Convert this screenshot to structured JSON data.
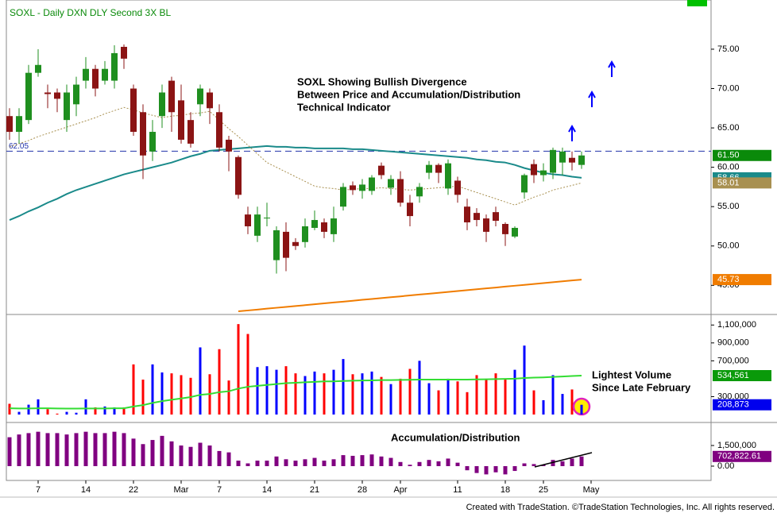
{
  "chart_data": [
    {
      "type": "candlestick",
      "title": "SOXL - Daily  DXN DLY Second 3X BL",
      "annotations": [
        "SOXL  Showing Bullish Divergence",
        "Between Price and Accumulation/Distribution",
        "Technical Indicator"
      ],
      "open": [
        66.5,
        64.5,
        66,
        72,
        69.5,
        69.5,
        66,
        68,
        71,
        72.5,
        71,
        71,
        75.3,
        70,
        67,
        62,
        66.5,
        71,
        68.5,
        66,
        68,
        69.5,
        67,
        63.5,
        61.3,
        54,
        51.3,
        53.5,
        48.2,
        51.8,
        50.5,
        50.5,
        52.3,
        53,
        51.5,
        55,
        57.7,
        57,
        57,
        60.2,
        57.4,
        58.5,
        55.5,
        56.3,
        59.3,
        60.3,
        57.3,
        58.3,
        55,
        54.2,
        53.5,
        54.3,
        52.8,
        51.2,
        56.8,
        60.4,
        59,
        59.3,
        60.6,
        61.2,
        60.3,
        null
      ],
      "high": [
        67.5,
        67.5,
        73,
        75,
        70.5,
        70,
        70.5,
        71.5,
        74,
        73,
        73.5,
        75.5,
        75.6,
        70.5,
        68,
        66,
        70.5,
        71.5,
        70.5,
        67,
        70.5,
        70,
        68,
        64,
        61.5,
        55,
        55,
        55.5,
        52.5,
        53,
        51,
        53.5,
        54.5,
        53.5,
        55,
        58,
        58.2,
        58.5,
        59,
        60.6,
        59,
        59.5,
        56.5,
        58,
        60.8,
        60.5,
        61,
        58.8,
        56,
        54.8,
        54,
        55,
        53,
        52.5,
        59.2,
        61,
        60.5,
        62.5,
        62.5,
        62,
        62,
        null
      ],
      "low": [
        63.5,
        63,
        65.5,
        71.5,
        67.5,
        67,
        64.5,
        66.5,
        70,
        69,
        70.5,
        70,
        72.5,
        64,
        58.5,
        60.8,
        65,
        64.5,
        63,
        62.5,
        66.5,
        65.5,
        62,
        59.5,
        56,
        51.5,
        50.5,
        52.5,
        46.5,
        46.8,
        49.5,
        49.8,
        52,
        51,
        50.5,
        54.5,
        56.5,
        56,
        56.5,
        58.5,
        56.5,
        55,
        52.5,
        55.5,
        58.5,
        58,
        56.5,
        55.5,
        52,
        52.5,
        50.5,
        52.5,
        50,
        51,
        56,
        58,
        58.2,
        58.5,
        59,
        59.6,
        59.8,
        null
      ],
      "close": [
        64.5,
        66.5,
        72,
        73,
        69.3,
        68.7,
        69.5,
        70.5,
        72.5,
        70,
        72.5,
        74.5,
        73.8,
        64.5,
        61.5,
        64.5,
        69.5,
        67,
        63.5,
        63,
        70,
        67.5,
        62.5,
        62,
        56.5,
        52.5,
        54,
        53.6,
        52,
        48.5,
        50,
        52.5,
        53.3,
        51.8,
        53.5,
        57.5,
        57.1,
        57.8,
        58.7,
        59,
        58.5,
        55.5,
        53.8,
        57.5,
        60.3,
        59.3,
        60.5,
        56.5,
        53,
        53.3,
        51.8,
        53.2,
        51.5,
        52.3,
        59,
        59,
        59.6,
        62.2,
        62,
        60.6,
        61.5,
        null
      ],
      "up_color": "#1f8f1f",
      "down_color": "#8b1414",
      "last_label": "61.50",
      "last_color": "#0a8a0a",
      "series": [
        {
          "color": "#1a8a8a",
          "style": "solid",
          "last_label": "58.66",
          "values": [
            53.3,
            53.8,
            54.4,
            54.9,
            55.5,
            56.0,
            56.6,
            57.1,
            57.5,
            57.9,
            58.3,
            58.7,
            59.1,
            59.4,
            59.7,
            60.0,
            60.3,
            60.6,
            61.0,
            61.4,
            61.7,
            62.1,
            62.2,
            62.3,
            62.4,
            62.5,
            62.6,
            62.7,
            62.6,
            62.6,
            62.5,
            62.5,
            62.4,
            62.4,
            62.4,
            62.4,
            62.3,
            62.3,
            62.2,
            62.1,
            62.0,
            61.9,
            61.8,
            61.7,
            61.6,
            61.5,
            61.4,
            61.3,
            61.2,
            61.0,
            60.9,
            60.7,
            60.6,
            60.3,
            59.9,
            59.6,
            59.3,
            59.1,
            59.0,
            58.8,
            58.66,
            null
          ]
        },
        {
          "color": "#a89050",
          "style": "dotted",
          "last_label": "58.01",
          "values": [
            62.6,
            63.0,
            63.4,
            63.9,
            64.3,
            64.7,
            65.1,
            65.5,
            65.9,
            66.3,
            66.8,
            67.2,
            67.6,
            67.3,
            66.9,
            66.6,
            66.3,
            66.5,
            66.6,
            66.8,
            66.9,
            67.1,
            66.0,
            64.9,
            63.9,
            62.8,
            61.7,
            60.6,
            60.0,
            59.4,
            58.8,
            58.2,
            57.6,
            57.4,
            57.3,
            57.1,
            57.2,
            57.3,
            57.3,
            57.4,
            57.3,
            57.2,
            57.1,
            57.2,
            57.3,
            57.4,
            57.5,
            57.6,
            57.2,
            56.8,
            56.4,
            56.0,
            55.6,
            55.2,
            55.7,
            56.2,
            56.6,
            57.1,
            57.4,
            57.7,
            58.01,
            null
          ]
        },
        {
          "color": "#f07c00",
          "style": "solid",
          "last_label": "45.73",
          "values": [
            null,
            null,
            null,
            null,
            null,
            null,
            null,
            null,
            null,
            null,
            null,
            null,
            null,
            null,
            null,
            null,
            null,
            null,
            null,
            null,
            null,
            null,
            null,
            null,
            41.7,
            41.81,
            41.92,
            42.04,
            42.15,
            42.26,
            42.37,
            42.48,
            42.6,
            42.71,
            42.82,
            42.93,
            43.04,
            43.16,
            43.27,
            43.38,
            43.49,
            43.6,
            43.72,
            43.83,
            43.94,
            44.05,
            44.16,
            44.28,
            44.39,
            44.5,
            44.61,
            44.72,
            44.84,
            44.95,
            45.06,
            45.17,
            45.28,
            45.4,
            45.51,
            45.62,
            45.73,
            null
          ]
        }
      ],
      "reference_line": {
        "value": 62.05,
        "color": "#2233aa"
      },
      "ylim": [
        41.4,
        81.25
      ],
      "yticks": [
        {
          "value": 45,
          "label": "45.00"
        },
        {
          "value": 50,
          "label": "50.00"
        },
        {
          "value": 55,
          "label": "55.00"
        },
        {
          "value": 60,
          "label": "60.00"
        },
        {
          "value": 65,
          "label": "65.00"
        },
        {
          "value": 70,
          "label": "70.00"
        },
        {
          "value": 75,
          "label": "75.00"
        }
      ]
    },
    {
      "type": "bar",
      "up_color": "#0000ff",
      "down_color": "#ff0000",
      "annotations": [
        "Lightest Volume",
        "Since Late February"
      ],
      "values": [
        220000,
        130000,
        210000,
        270000,
        160000,
        110000,
        130000,
        120000,
        270000,
        180000,
        190000,
        180000,
        180000,
        660000,
        490000,
        660000,
        570000,
        560000,
        540000,
        510000,
        850000,
        550000,
        830000,
        480000,
        1110000,
        1000000,
        630000,
        640000,
        600000,
        640000,
        560000,
        530000,
        580000,
        560000,
        600000,
        720000,
        550000,
        560000,
        580000,
        520000,
        440000,
        500000,
        610000,
        700000,
        450000,
        370000,
        500000,
        470000,
        350000,
        540000,
        500000,
        560000,
        500000,
        600000,
        870000,
        370000,
        260000,
        540000,
        330000,
        380000,
        208873,
        null
      ],
      "last_label": "208,873",
      "last_color": "#0000ee",
      "series": [
        {
          "color": "#33dd33",
          "last_label": "534,561",
          "values": [
            170000,
            168000,
            168000,
            170000,
            170000,
            168000,
            166000,
            166000,
            168000,
            168000,
            168000,
            170000,
            170000,
            190000,
            205000,
            230000,
            250000,
            265000,
            280000,
            295000,
            320000,
            330000,
            350000,
            360000,
            390000,
            410000,
            420000,
            430000,
            440000,
            450000,
            455000,
            460000,
            465000,
            470000,
            470000,
            475000,
            478000,
            480000,
            482000,
            485000,
            485000,
            487000,
            488000,
            490000,
            490000,
            490000,
            490000,
            490000,
            490000,
            492000,
            494000,
            496000,
            498000,
            500000,
            508000,
            512000,
            515000,
            520000,
            525000,
            530000,
            534561,
            null
          ]
        }
      ],
      "ylim": [
        100000,
        1200000
      ],
      "yticks": [
        {
          "value": 300000,
          "label": "300,000"
        },
        {
          "value": 700000,
          "label": "700,000"
        },
        {
          "value": 900000,
          "label": "900,000"
        },
        {
          "value": 1100000,
          "label": "1,100,000"
        }
      ]
    },
    {
      "type": "bar",
      "color": "#800080",
      "annotations": [
        "Accumulation/Distribution"
      ],
      "categories": [
        null,
        null,
        null,
        "7",
        null,
        null,
        null,
        null,
        "14",
        null,
        null,
        null,
        null,
        "22",
        null,
        null,
        null,
        null,
        "Mar",
        null,
        null,
        null,
        "7",
        null,
        null,
        null,
        null,
        "14",
        null,
        null,
        null,
        null,
        "21",
        null,
        null,
        null,
        null,
        "28",
        null,
        null,
        null,
        "Apr",
        null,
        null,
        null,
        null,
        null,
        "11",
        null,
        null,
        null,
        null,
        "18",
        null,
        null,
        null,
        "25",
        null,
        null,
        null,
        null,
        "May"
      ],
      "values": [
        2100000,
        2300000,
        2400000,
        2500000,
        2400000,
        2400000,
        2300000,
        2400000,
        2500000,
        2400000,
        2400000,
        2500000,
        2400000,
        2000000,
        1600000,
        1900000,
        2200000,
        1800000,
        1500000,
        1400000,
        1700000,
        1500000,
        1100000,
        1000000,
        400000,
        200000,
        400000,
        400000,
        700000,
        500000,
        400000,
        500000,
        600000,
        400000,
        500000,
        800000,
        750000,
        800000,
        850000,
        700000,
        600000,
        300000,
        100000,
        300000,
        450000,
        350000,
        550000,
        250000,
        -300000,
        -500000,
        -600000,
        -450000,
        -600000,
        -350000,
        200000,
        150000,
        100000,
        450000,
        350000,
        550000,
        702822.61,
        null
      ],
      "last_label": "702,822.61",
      "last_color": "#800080",
      "ylim": [
        -1040000,
        3000000
      ],
      "yticks": [
        {
          "value": 0,
          "label": "0.00"
        },
        {
          "value": 1500000,
          "label": "1,500,000"
        }
      ]
    }
  ],
  "footer": "Created with TradeStation. ©TradeStation Technologies, Inc. All rights reserved."
}
